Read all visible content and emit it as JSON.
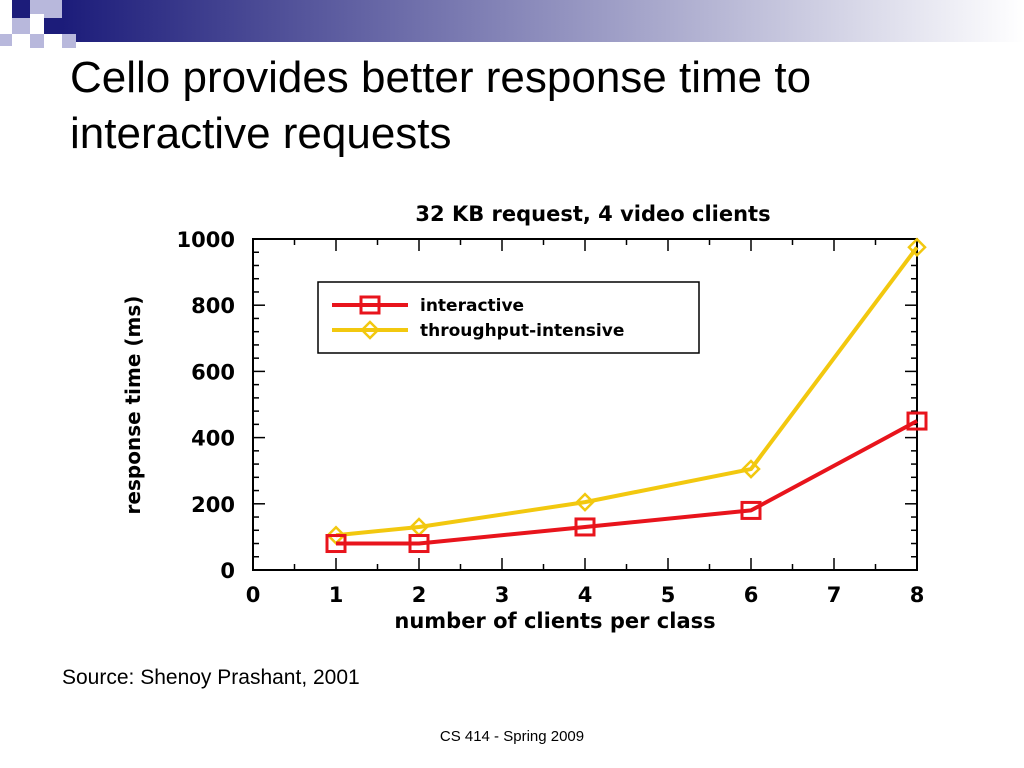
{
  "slide": {
    "title": "Cello provides better response time to interactive requests",
    "source": "Source: Shenoy Prashant, 2001",
    "footer": "CS 414 - Spring 2009"
  },
  "colors": {
    "deco_dark": "#1c1c7a",
    "deco_light": "#b8b8dc",
    "interactive": "#e8141c",
    "throughput": "#f2c80f"
  },
  "chart_data": {
    "type": "line",
    "title": "32 KB request, 4 video clients",
    "xlabel": "number of clients per class",
    "ylabel": "response time (ms)",
    "xlim": [
      0,
      8
    ],
    "ylim": [
      0,
      1000
    ],
    "xticks": [
      0,
      1,
      2,
      3,
      4,
      5,
      6,
      7,
      8
    ],
    "yticks": [
      0,
      200,
      400,
      600,
      800,
      1000
    ],
    "grid": false,
    "legend_position": "top-left",
    "series": [
      {
        "name": "interactive",
        "marker": "square",
        "color": "#e8141c",
        "x": [
          1,
          2,
          4,
          6,
          8
        ],
        "y": [
          80,
          80,
          130,
          180,
          450
        ]
      },
      {
        "name": "throughput-intensive",
        "marker": "diamond",
        "color": "#f2c80f",
        "x": [
          1,
          2,
          4,
          6,
          8
        ],
        "y": [
          105,
          130,
          205,
          305,
          975
        ]
      }
    ]
  }
}
